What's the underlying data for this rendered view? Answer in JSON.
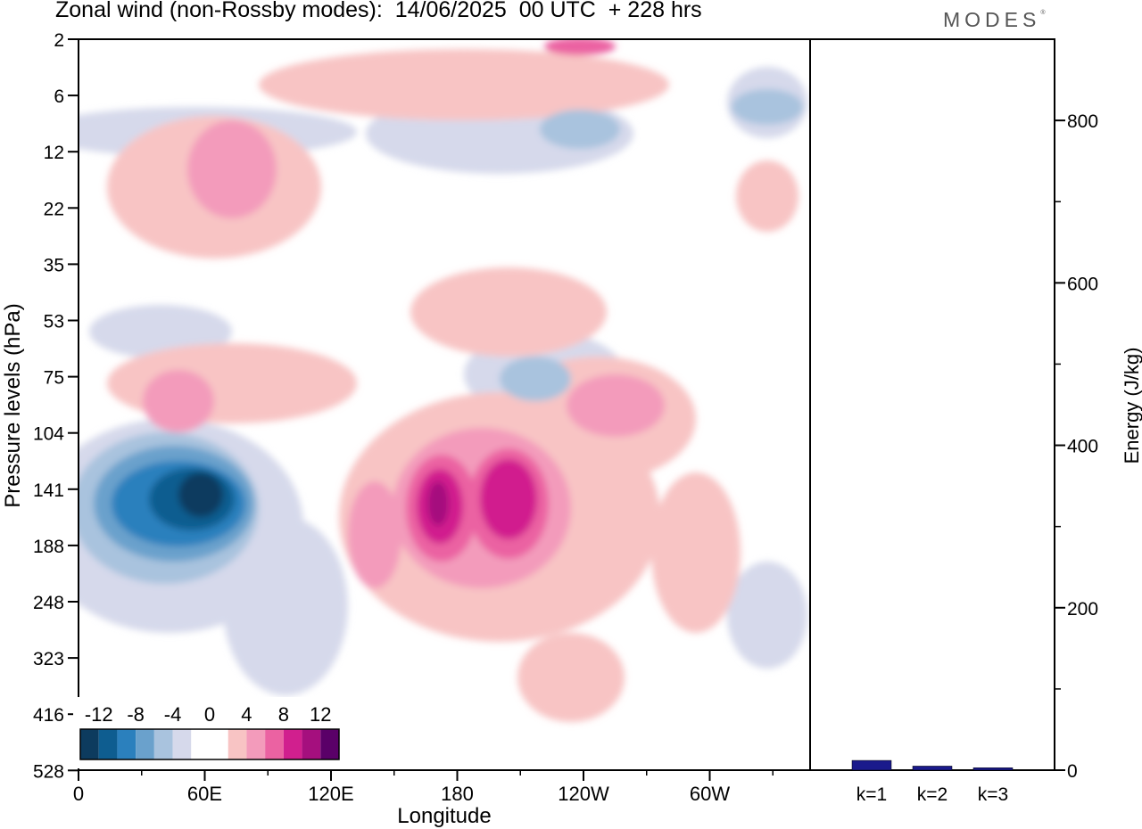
{
  "header": {
    "title": "Zonal wind (non-Rossby modes):  14/06/2025  00 UTC  + 228 hrs",
    "logo": "MODES"
  },
  "chart_data": [
    {
      "type": "heatmap",
      "title": "Zonal wind (non-Rossby modes):  14/06/2025  00 UTC  + 228 hrs",
      "xlabel": "Longitude",
      "ylabel": "Pressure levels (hPa)",
      "x_ticks": [
        "0",
        "60E",
        "120E",
        "180",
        "120W",
        "60W"
      ],
      "y_ticks": [
        "2",
        "6",
        "12",
        "22",
        "35",
        "53",
        "75",
        "104",
        "141",
        "188",
        "248",
        "323",
        "416",
        "528"
      ],
      "colorbar": {
        "labels": [
          "-12",
          "-8",
          "-4",
          "0",
          "4",
          "8",
          "12"
        ],
        "colors": [
          "#0d3b5e",
          "#0e5d90",
          "#2b80bd",
          "#6aa1cc",
          "#a9c3de",
          "#d6d9eb",
          "#ffffff",
          "#ffffff",
          "#f8c4c4",
          "#f39bbb",
          "#eb62a2",
          "#d11f8e",
          "#a50f7e",
          "#5a0068"
        ]
      },
      "contours": [
        {
          "level": "#d6d9eb",
          "cx": 220,
          "cy": 148,
          "rx": 180,
          "ry": 28
        },
        {
          "level": "#d6d9eb",
          "cx": 560,
          "cy": 150,
          "rx": 150,
          "ry": 45
        },
        {
          "level": "#d6d9eb",
          "cx": 860,
          "cy": 115,
          "rx": 45,
          "ry": 40
        },
        {
          "level": "#d6d9eb",
          "cx": 180,
          "cy": 372,
          "rx": 80,
          "ry": 30
        },
        {
          "level": "#d6d9eb",
          "cx": 610,
          "cy": 420,
          "rx": 90,
          "ry": 48
        },
        {
          "level": "#d6d9eb",
          "cx": 190,
          "cy": 590,
          "rx": 150,
          "ry": 120
        },
        {
          "level": "#d6d9eb",
          "cx": 320,
          "cy": 680,
          "rx": 70,
          "ry": 100
        },
        {
          "level": "#d6d9eb",
          "cx": 860,
          "cy": 690,
          "rx": 45,
          "ry": 60
        },
        {
          "level": "#f8c4c4",
          "cx": 520,
          "cy": 95,
          "rx": 230,
          "ry": 40
        },
        {
          "level": "#f8c4c4",
          "cx": 240,
          "cy": 210,
          "rx": 120,
          "ry": 80
        },
        {
          "level": "#f8c4c4",
          "cx": 260,
          "cy": 430,
          "rx": 140,
          "ry": 45
        },
        {
          "level": "#f8c4c4",
          "cx": 570,
          "cy": 350,
          "rx": 110,
          "ry": 50
        },
        {
          "level": "#f8c4c4",
          "cx": 560,
          "cy": 580,
          "rx": 180,
          "ry": 140
        },
        {
          "level": "#f8c4c4",
          "cx": 670,
          "cy": 470,
          "rx": 110,
          "ry": 70
        },
        {
          "level": "#f8c4c4",
          "cx": 780,
          "cy": 620,
          "rx": 50,
          "ry": 90
        },
        {
          "level": "#f8c4c4",
          "cx": 640,
          "cy": 760,
          "rx": 60,
          "ry": 50
        },
        {
          "level": "#f8c4c4",
          "cx": 860,
          "cy": 220,
          "rx": 35,
          "ry": 40
        },
        {
          "level": "#f39bbb",
          "cx": 200,
          "cy": 450,
          "rx": 40,
          "ry": 35
        },
        {
          "level": "#f39bbb",
          "cx": 420,
          "cy": 600,
          "rx": 30,
          "ry": 60
        },
        {
          "level": "#f39bbb",
          "cx": 540,
          "cy": 570,
          "rx": 100,
          "ry": 90
        },
        {
          "level": "#f39bbb",
          "cx": 690,
          "cy": 455,
          "rx": 55,
          "ry": 35
        },
        {
          "level": "#f39bbb",
          "cx": 260,
          "cy": 190,
          "rx": 50,
          "ry": 55
        },
        {
          "level": "#eb62a2",
          "cx": 495,
          "cy": 570,
          "rx": 40,
          "ry": 60
        },
        {
          "level": "#eb62a2",
          "cx": 570,
          "cy": 565,
          "rx": 45,
          "ry": 62
        },
        {
          "level": "#eb62a2",
          "cx": 650,
          "cy": 52,
          "rx": 40,
          "ry": 10
        },
        {
          "level": "#d11f8e",
          "cx": 493,
          "cy": 568,
          "rx": 26,
          "ry": 42
        },
        {
          "level": "#d11f8e",
          "cx": 570,
          "cy": 560,
          "rx": 32,
          "ry": 45
        },
        {
          "level": "#a50f7e",
          "cx": 491,
          "cy": 565,
          "rx": 12,
          "ry": 25
        },
        {
          "level": "#a9c3de",
          "cx": 600,
          "cy": 425,
          "rx": 40,
          "ry": 25
        },
        {
          "level": "#a9c3de",
          "cx": 650,
          "cy": 145,
          "rx": 45,
          "ry": 22
        },
        {
          "level": "#a9c3de",
          "cx": 860,
          "cy": 120,
          "rx": 40,
          "ry": 20
        },
        {
          "level": "#a9c3de",
          "cx": 185,
          "cy": 570,
          "rx": 105,
          "ry": 85
        },
        {
          "level": "#6aa1cc",
          "cx": 195,
          "cy": 565,
          "rx": 90,
          "ry": 65
        },
        {
          "level": "#2b80bd",
          "cx": 200,
          "cy": 565,
          "rx": 75,
          "ry": 48
        },
        {
          "level": "#0e5d90",
          "cx": 215,
          "cy": 560,
          "rx": 48,
          "ry": 35
        },
        {
          "level": "#0d3b5e",
          "cx": 225,
          "cy": 555,
          "rx": 25,
          "ry": 25
        }
      ]
    },
    {
      "type": "bar",
      "ylabel": "Energy (J/kg)",
      "categories": [
        "k=1",
        "k=2",
        "k=3"
      ],
      "values": [
        12,
        5,
        3
      ],
      "ylim": [
        0,
        900
      ],
      "y_ticks": [
        "0",
        "200",
        "400",
        "600",
        "800"
      ],
      "color": "#1a1a8c"
    }
  ]
}
